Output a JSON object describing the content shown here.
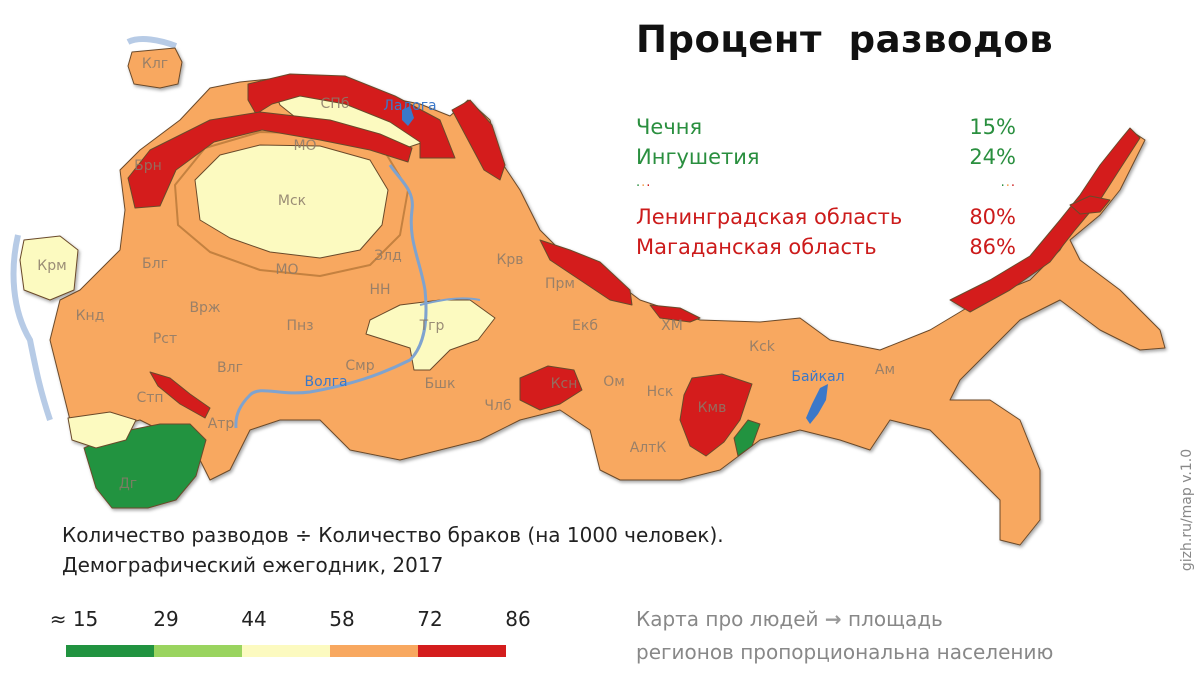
{
  "title": "Процент  разводов",
  "stats": [
    {
      "name": "Чечня",
      "value": "15%",
      "level": "low"
    },
    {
      "name": "Ингушетия",
      "value": "24%",
      "level": "low"
    },
    {
      "name": "Ленинградская область",
      "value": "80%",
      "level": "high"
    },
    {
      "name": "Магаданская область",
      "value": "86%",
      "level": "high"
    }
  ],
  "caption": {
    "line1": "Количество разводов ÷ Количество браков (на 1000 человек).",
    "line2": "Демографический ежегодник, 2017"
  },
  "legend": {
    "labels": [
      "≈ 15",
      "29",
      "44",
      "58",
      "72",
      "86"
    ],
    "colors": [
      "#219340",
      "#9ad45f",
      "#fcfac0",
      "#f8a860",
      "#d41d1d"
    ]
  },
  "note": {
    "line1_a": "Карта про людей",
    "arrow": "→",
    "line1_b": "площадь",
    "line2": "регионов пропорциональна населению"
  },
  "side_text": "gizh.ru/map     v.1.0",
  "region_labels": [
    "Клг",
    "СПб",
    "МО",
    "Брн",
    "Мск",
    "Крм",
    "Блг",
    "МО",
    "Злд",
    "Крв",
    "НН",
    "Прм",
    "Кнд",
    "Врж",
    "Пнз",
    "Тгр",
    "Екб",
    "ХМ",
    "Рст",
    "Влг",
    "Смр",
    "Ксн",
    "Ом",
    "Ксk",
    "Стп",
    "Бшк",
    "Члб",
    "Нск",
    "Кмв",
    "Атр",
    "АлтК",
    "Ам",
    "Дг"
  ],
  "water_labels": [
    "Ладога",
    "Волга",
    "Байкал"
  ],
  "map_colors": {
    "green": "#219340",
    "light_green": "#9ad45f",
    "pale_yellow": "#fcfac0",
    "orange": "#f8a860",
    "red": "#d41d1d",
    "water": "#3b78c9",
    "border": "#6a4a2a"
  }
}
